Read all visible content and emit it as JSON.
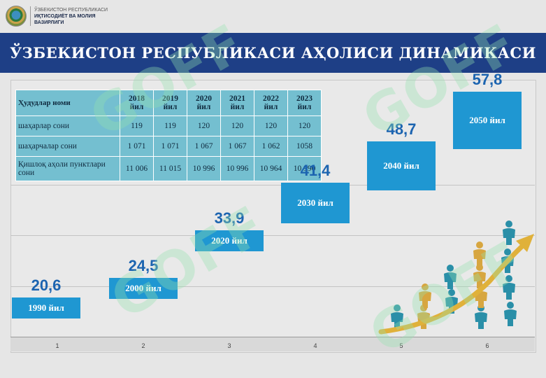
{
  "header": {
    "logo_line1": "ЎЗБЕКИСТОН РЕСПУБЛИКАСИ",
    "logo_line2": "ИҚТИСОДИЁТ ВА МОЛИЯ",
    "logo_line3": "ВАЗИРЛИГИ",
    "title": "ЎЗБЕКИСТОН РЕСПУБЛИКАСИ АҲОЛИСИ ДИНАМИКАСИ"
  },
  "table": {
    "header": [
      "Ҳудудлар номи",
      "2018 йил",
      "2019 йил",
      "2020 йил",
      "2021 йил",
      "2022 йил",
      "2023 йил"
    ],
    "rows": [
      [
        "шаҳарлар сони",
        "119",
        "119",
        "120",
        "120",
        "120",
        "120"
      ],
      [
        "шаҳарчалар сони",
        "1 071",
        "1 071",
        "1 067",
        "1 067",
        "1 062",
        "1058"
      ],
      [
        "Қишлоқ аҳоли пунктлари сони",
        "11 006",
        "11 015",
        "10 996",
        "10 996",
        "10 964",
        "10 990"
      ]
    ]
  },
  "chart_data": {
    "type": "bar",
    "categories": [
      "1",
      "2",
      "3",
      "4",
      "5",
      "6"
    ],
    "bar_labels": [
      "1990 йил",
      "2000 йил",
      "2020 йил",
      "2030 йил",
      "2040 йил",
      "2050 йил"
    ],
    "values": [
      20.6,
      24.5,
      33.9,
      41.4,
      48.7,
      57.8
    ],
    "value_labels": [
      "20,6",
      "24,5",
      "33,9",
      "41,4",
      "48,7",
      "57,8"
    ],
    "style": "floating",
    "ylim": [
      15,
      65
    ],
    "grid": true,
    "legend": "none",
    "colors": {
      "bar": "#1f97d2",
      "value_text": "#1c64b0",
      "title_band": "#1e3f86",
      "table": "#74bfd0"
    }
  },
  "watermark": "GOFF",
  "decoration": "people-growth-arrow-icon"
}
